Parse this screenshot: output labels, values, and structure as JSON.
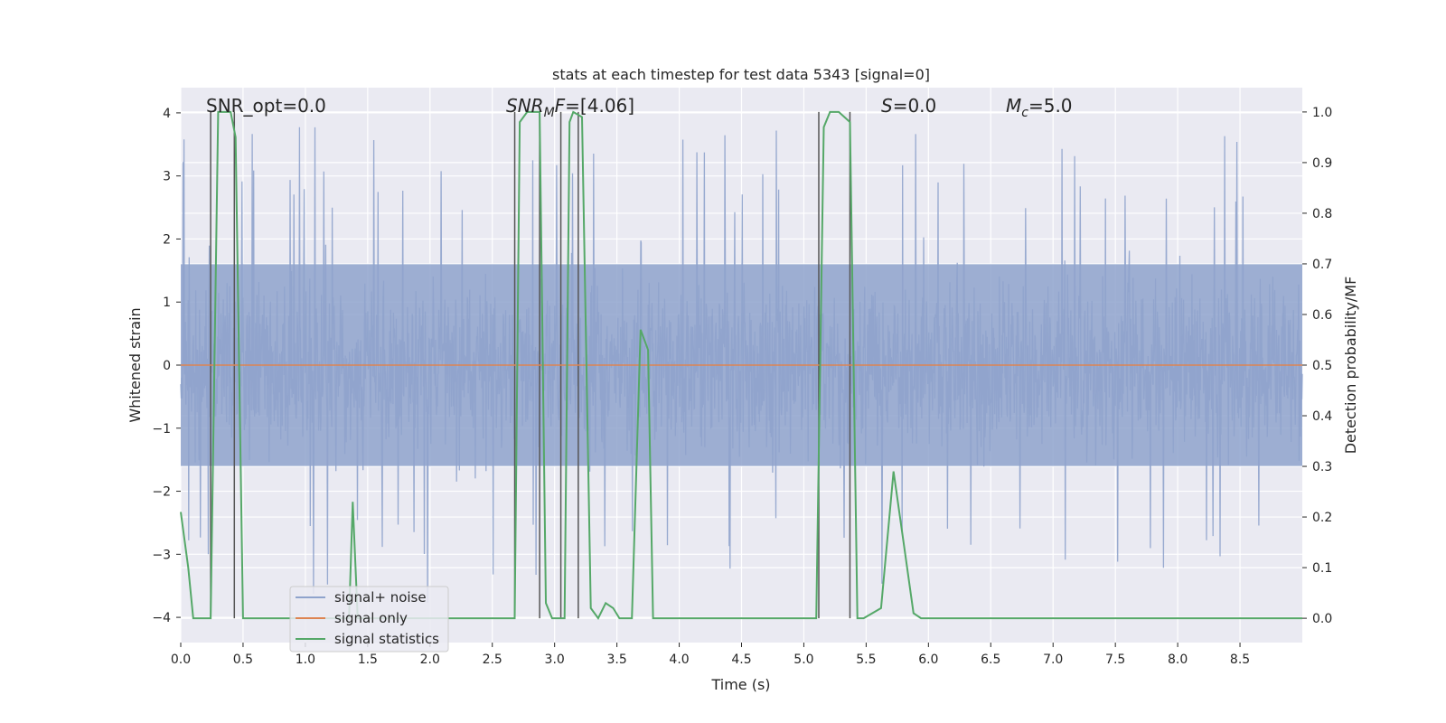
{
  "chart_data": {
    "type": "line",
    "title": "stats at each timestep for test data 5343 [signal=0]",
    "xlabel": "Time (s)",
    "ylabel_left": "Whitened strain",
    "ylabel_right": "Detection probability/MF",
    "xlim": [
      0.0,
      9.0
    ],
    "ylim_left": [
      -4.4,
      4.4
    ],
    "ylim_right": [
      -0.048,
      1.048
    ],
    "x_ticks": [
      0.0,
      0.5,
      1.0,
      1.5,
      2.0,
      2.5,
      3.0,
      3.5,
      4.0,
      4.5,
      5.0,
      5.5,
      6.0,
      6.5,
      7.0,
      7.5,
      8.0,
      8.5
    ],
    "x_tick_labels": [
      "0.0",
      "0.5",
      "1.0",
      "1.5",
      "2.0",
      "2.5",
      "3.0",
      "3.5",
      "4.0",
      "4.5",
      "5.0",
      "5.5",
      "6.0",
      "6.5",
      "7.0",
      "7.5",
      "8.0",
      "8.5"
    ],
    "y_left_ticks": [
      -4,
      -3,
      -2,
      -1,
      0,
      1,
      2,
      3,
      4
    ],
    "y_left_tick_labels": [
      "−4",
      "−3",
      "−2",
      "−1",
      "0",
      "1",
      "2",
      "3",
      "4"
    ],
    "y_right_ticks": [
      0.0,
      0.1,
      0.2,
      0.3,
      0.4,
      0.5,
      0.6,
      0.7,
      0.8,
      0.9,
      1.0
    ],
    "y_right_tick_labels": [
      "0.0",
      "0.1",
      "0.2",
      "0.3",
      "0.4",
      "0.5",
      "0.6",
      "0.7",
      "0.8",
      "0.9",
      "1.0"
    ],
    "annotations": {
      "snr_opt": "SNR_opt=0.0",
      "snr_mf": "=[4.06]",
      "s": "=0.0",
      "mc": "=5.0"
    },
    "legend": {
      "placement": "lower-left",
      "entries": [
        "signal+ noise",
        "signal only",
        "signal statistics"
      ]
    },
    "series": [
      {
        "name": "signal+ noise",
        "axis": "left",
        "color": "#8fa3cc",
        "style": "dense noise trace, approx. amplitude ±2 with spikes to ±3.5",
        "x_range": [
          0.0,
          9.0
        ],
        "typical_range": [
          -2.4,
          2.4
        ],
        "extremes": [
          -4.0,
          3.8
        ]
      },
      {
        "name": "signal only",
        "axis": "left",
        "color": "#dd8452",
        "x": [
          0.0,
          9.0
        ],
        "y": [
          0.0,
          0.0
        ]
      },
      {
        "name": "signal statistics",
        "axis": "right",
        "color": "#55a868",
        "x": [
          0.0,
          0.06,
          0.1,
          0.24,
          0.3,
          0.4,
          0.44,
          0.5,
          1.35,
          1.38,
          1.42,
          2.68,
          2.72,
          2.78,
          2.88,
          2.93,
          2.98,
          3.08,
          3.12,
          3.15,
          3.22,
          3.29,
          3.35,
          3.41,
          3.47,
          3.52,
          3.56,
          3.62,
          3.69,
          3.75,
          3.79,
          4.2,
          4.3,
          5.1,
          5.16,
          5.21,
          5.28,
          5.37,
          5.43,
          5.48,
          5.62,
          5.72,
          5.8,
          5.88,
          5.94,
          6.7,
          9.0
        ],
        "y": [
          0.21,
          0.1,
          0.0,
          0.0,
          1.0,
          1.0,
          0.95,
          0.0,
          0.0,
          0.23,
          0.0,
          0.0,
          0.98,
          1.0,
          1.0,
          0.03,
          0.0,
          0.0,
          0.98,
          1.0,
          0.99,
          0.02,
          0.0,
          0.03,
          0.02,
          0.0,
          0.0,
          0.0,
          0.57,
          0.53,
          0.0,
          0.0,
          0.0,
          0.0,
          0.97,
          1.0,
          1.0,
          0.98,
          0.0,
          0.0,
          0.02,
          0.29,
          0.15,
          0.01,
          0.0,
          0.0,
          0.0
        ]
      }
    ],
    "vertical_lines": {
      "axis": "right",
      "color": "#555555",
      "x": [
        0.24,
        0.43,
        2.68,
        2.88,
        3.05,
        3.19,
        5.12,
        5.37
      ],
      "y_range": [
        0.0,
        1.0
      ]
    },
    "grid": true,
    "background": "#eaeaf2"
  }
}
